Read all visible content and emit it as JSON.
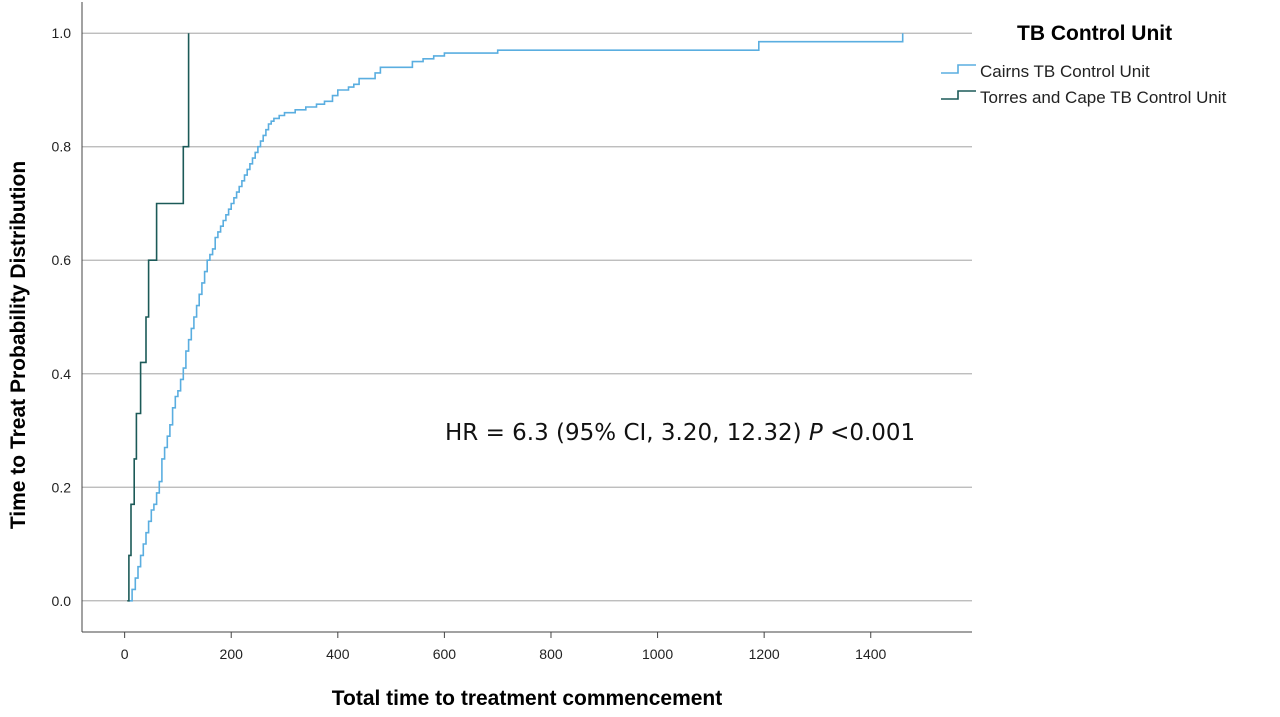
{
  "chart_data": {
    "type": "line",
    "xlabel": "Total time to treatment commencement",
    "ylabel": "Time to Treat Probability Distribution",
    "xlim": [
      -80,
      1590
    ],
    "ylim": [
      -0.055,
      1.055
    ],
    "x_ticks": [
      0,
      200,
      400,
      600,
      800,
      1000,
      1200,
      1400
    ],
    "y_ticks": [
      0.0,
      0.2,
      0.4,
      0.6,
      0.8,
      1.0
    ],
    "y_tick_labels": [
      "0.0",
      "0.2",
      "0.4",
      "0.6",
      "0.8",
      "1.0"
    ],
    "grid": "horizontal",
    "legend": {
      "title": "TB Control Unit",
      "position": "top-right"
    },
    "annotation": {
      "prefix": "HR = 6.3 (95% CI, 3.20, 12.32) ",
      "italic": "P",
      "suffix": " <0.001"
    },
    "series": [
      {
        "name": "Cairns TB Control Unit",
        "color": "#5aaee0",
        "step": true,
        "x": [
          8,
          14,
          20,
          25,
          30,
          35,
          40,
          45,
          50,
          55,
          60,
          65,
          70,
          75,
          80,
          85,
          90,
          95,
          100,
          105,
          110,
          115,
          120,
          125,
          130,
          135,
          140,
          145,
          150,
          155,
          160,
          165,
          170,
          175,
          180,
          185,
          190,
          195,
          200,
          205,
          210,
          215,
          220,
          225,
          230,
          235,
          240,
          245,
          250,
          255,
          260,
          265,
          270,
          275,
          280,
          290,
          300,
          320,
          340,
          360,
          375,
          390,
          400,
          420,
          430,
          440,
          470,
          480,
          540,
          560,
          580,
          600,
          700,
          1190,
          1460
        ],
        "y": [
          0.0,
          0.02,
          0.04,
          0.06,
          0.08,
          0.1,
          0.12,
          0.14,
          0.16,
          0.17,
          0.19,
          0.21,
          0.25,
          0.27,
          0.29,
          0.31,
          0.34,
          0.36,
          0.37,
          0.39,
          0.41,
          0.44,
          0.46,
          0.48,
          0.5,
          0.52,
          0.54,
          0.56,
          0.58,
          0.6,
          0.61,
          0.62,
          0.64,
          0.65,
          0.66,
          0.67,
          0.68,
          0.69,
          0.7,
          0.71,
          0.72,
          0.73,
          0.74,
          0.75,
          0.76,
          0.77,
          0.78,
          0.79,
          0.8,
          0.81,
          0.82,
          0.83,
          0.84,
          0.845,
          0.85,
          0.855,
          0.86,
          0.865,
          0.87,
          0.875,
          0.88,
          0.89,
          0.9,
          0.905,
          0.91,
          0.92,
          0.93,
          0.94,
          0.95,
          0.955,
          0.96,
          0.965,
          0.97,
          0.985,
          1.0
        ]
      },
      {
        "name": "Torres and Cape TB Control Unit",
        "color": "#1c5a58",
        "step": true,
        "x": [
          5,
          8,
          12,
          18,
          22,
          30,
          40,
          45,
          60,
          110,
          120
        ],
        "y": [
          0.0,
          0.08,
          0.17,
          0.25,
          0.33,
          0.42,
          0.5,
          0.6,
          0.7,
          0.8,
          1.0
        ]
      }
    ]
  }
}
